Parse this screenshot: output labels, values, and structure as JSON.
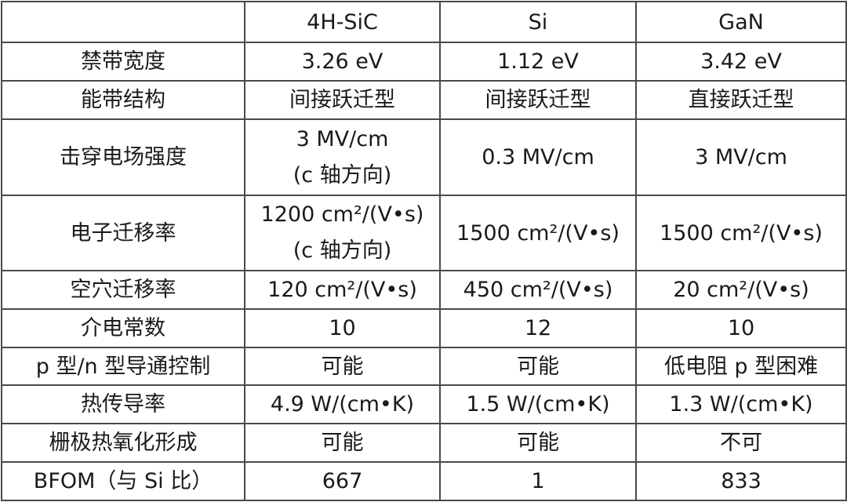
{
  "header": [
    "",
    "4H-SiC",
    "Si",
    "GaN"
  ],
  "rows": [
    {
      "label": "禁带宽度",
      "cells": [
        [
          "3.26 eV"
        ],
        [
          "1.12 eV"
        ],
        [
          "3.42 eV"
        ]
      ]
    },
    {
      "label": "能带结构",
      "cells": [
        [
          "间接跃迁型"
        ],
        [
          "间接跃迁型"
        ],
        [
          "直接跃迁型"
        ]
      ]
    },
    {
      "label": "击穿电场强度",
      "cells": [
        [
          "3 MV/cm",
          "(c 轴方向)"
        ],
        [
          "0.3 MV/cm"
        ],
        [
          "3 MV/cm"
        ]
      ]
    },
    {
      "label": "电子迁移率",
      "cells": [
        [
          "1200 cm²/(V•s)",
          "(c 轴方向)"
        ],
        [
          "1500 cm²/(V•s)"
        ],
        [
          "1500 cm²/(V•s)"
        ]
      ]
    },
    {
      "label": "空穴迁移率",
      "cells": [
        [
          "120 cm²/(V•s)"
        ],
        [
          "450 cm²/(V•s)"
        ],
        [
          "20 cm²/(V•s)"
        ]
      ]
    },
    {
      "label": "介电常数",
      "cells": [
        [
          "10"
        ],
        [
          "12"
        ],
        [
          "10"
        ]
      ]
    },
    {
      "label": "p 型/n 型导通控制",
      "cells": [
        [
          "可能"
        ],
        [
          "可能"
        ],
        [
          "低电阻 p 型困难"
        ]
      ]
    },
    {
      "label": "热传导率",
      "cells": [
        [
          "4.9 W/(cm•K)"
        ],
        [
          "1.5 W/(cm•K)"
        ],
        [
          "1.3 W/(cm•K)"
        ]
      ]
    },
    {
      "label": "栅极热氧化形成",
      "cells": [
        [
          "可能"
        ],
        [
          "可能"
        ],
        [
          "不可"
        ]
      ]
    },
    {
      "label": "BFOM（与 Si 比）",
      "cells": [
        [
          "667"
        ],
        [
          "1"
        ],
        [
          "833"
        ]
      ]
    }
  ]
}
